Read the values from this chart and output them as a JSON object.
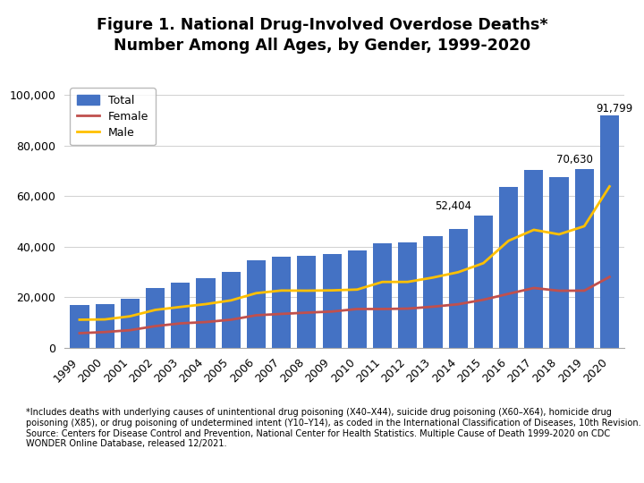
{
  "years": [
    1999,
    2000,
    2001,
    2002,
    2003,
    2004,
    2005,
    2006,
    2007,
    2008,
    2009,
    2010,
    2011,
    2012,
    2013,
    2014,
    2015,
    2016,
    2017,
    2018,
    2019,
    2020
  ],
  "total": [
    16849,
    17415,
    19394,
    23518,
    25785,
    27424,
    29813,
    34425,
    36010,
    36450,
    37004,
    38329,
    41340,
    41502,
    43982,
    47055,
    52404,
    63632,
    70237,
    67367,
    70630,
    91799
  ],
  "female": [
    5765,
    6215,
    6947,
    8556,
    9642,
    10168,
    11088,
    12841,
    13385,
    13885,
    14318,
    15323,
    15323,
    15470,
    16235,
    17196,
    18975,
    21335,
    23619,
    22534,
    22578,
    28016
  ],
  "male": [
    11084,
    11200,
    12447,
    14962,
    16143,
    17256,
    18725,
    21584,
    22625,
    22565,
    22686,
    23006,
    26017,
    26032,
    27747,
    29859,
    33433,
    42297,
    46618,
    44833,
    48052,
    63772
  ],
  "bar_color": "#4472c4",
  "female_color": "#c0504d",
  "male_color": "#ffc000",
  "title_line1": "Figure 1. National Drug-Involved Overdose Deaths*",
  "title_line2": "Number Among All Ages, by Gender, 1999-2020",
  "legend_labels": [
    "Total",
    "Female",
    "Male"
  ],
  "yticks": [
    0,
    20000,
    40000,
    60000,
    80000,
    100000
  ],
  "ylim": [
    0,
    105000
  ],
  "footnote": "*Includes deaths with underlying causes of unintentional drug poisoning (X40–X44), suicide drug poisoning (X60–X64), homicide drug\npoisoning (X85), or drug poisoning of undetermined intent (Y10–Y14), as coded in the International Classification of Diseases, 10th Revision.\nSource: Centers for Disease Control and Prevention, National Center for Health Statistics. Multiple Cause of Death 1999-2020 on CDC\nWONDER Online Database, released 12/2021.",
  "background_color": "#ffffff"
}
